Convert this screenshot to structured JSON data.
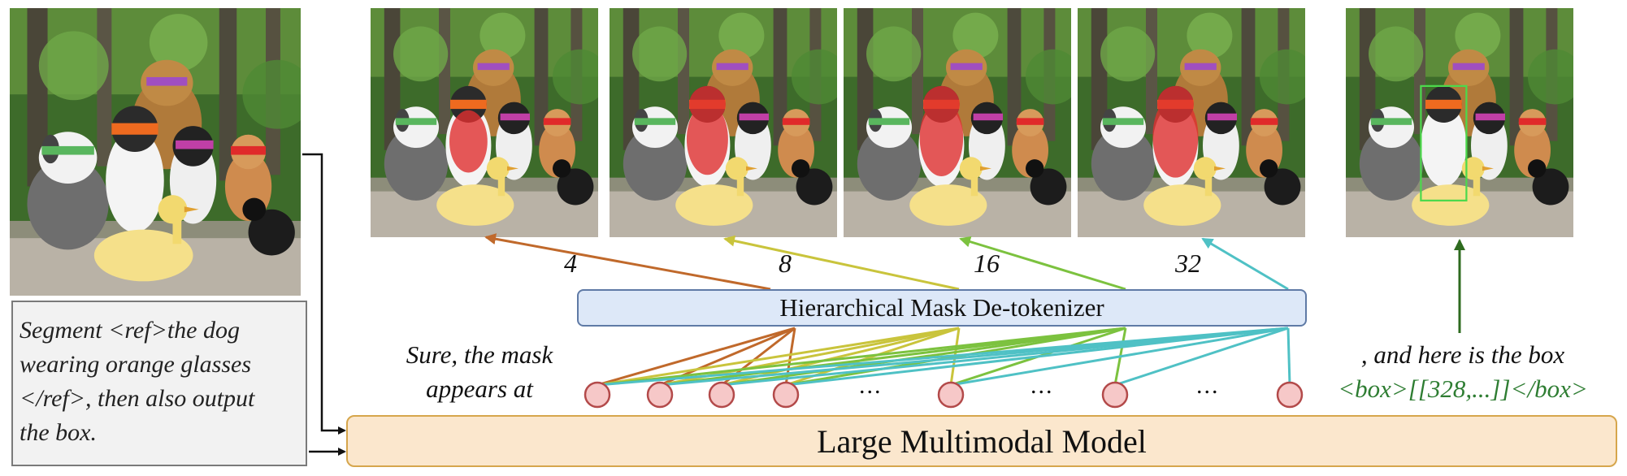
{
  "prompt": {
    "text": "Segment <ref>the dog\nwearing orange glasses\n</ref>, then also output\nthe box."
  },
  "detokenizer": {
    "label": "Hierarchical Mask De-tokenizer"
  },
  "model": {
    "label": "Large Multimodal Model"
  },
  "response": {
    "mask_text": "Sure, the mask\nappears at",
    "box_text": ", and here is the box",
    "box_output": "<box>[[328,...]]</box>"
  },
  "scales": [
    "4",
    "8",
    "16",
    "32"
  ],
  "ellipses": [
    "...",
    "...",
    "..."
  ],
  "colors": {
    "scale4": "#c0692b",
    "scale8": "#c9c43c",
    "scale16": "#7cc23f",
    "scale32": "#4fc1c5",
    "box_arrow": "#2e6b1f",
    "mask": "#e03030",
    "token_fill": "#f6c8c8",
    "token_stroke": "#b34a4a"
  },
  "images": {
    "input": "photo-dogs-duck-forest",
    "outputs": [
      "mask-scale-4",
      "mask-scale-8",
      "mask-scale-16",
      "mask-scale-32",
      "box-output"
    ]
  }
}
